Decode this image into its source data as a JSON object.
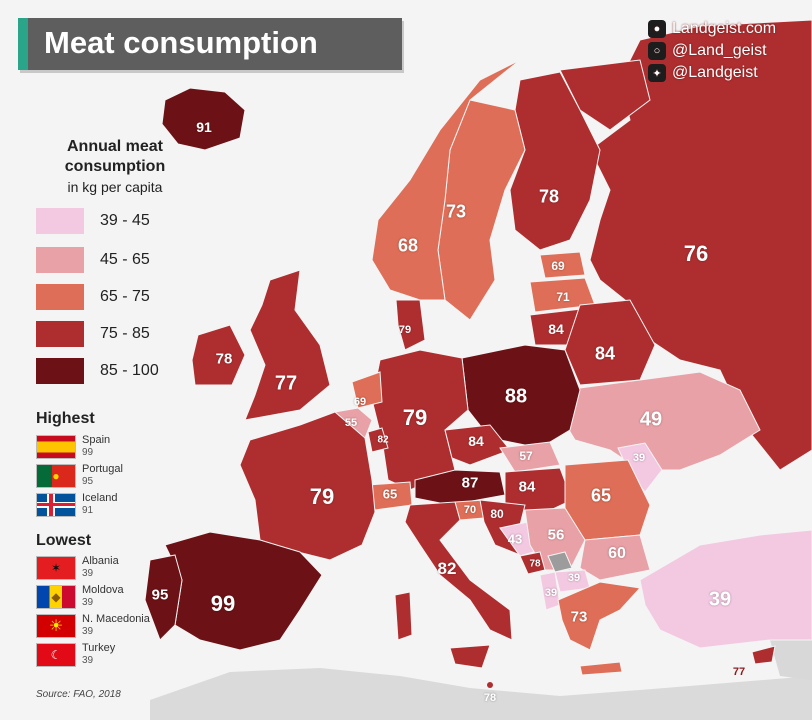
{
  "title": "Meat consumption",
  "brand": {
    "site": "Landgeist.com",
    "instagram": "@Land_geist",
    "twitter": "@Landgeist",
    "icons": [
      "globe-icon",
      "instagram-icon",
      "twitter-icon"
    ]
  },
  "legend": {
    "title_line1": "Annual meat",
    "title_line2": "consumption",
    "subtitle": "in kg per capita",
    "bins": [
      {
        "label": "39 - 45",
        "color": "#f3c9e2"
      },
      {
        "label": "45 - 65",
        "color": "#e8a1a6"
      },
      {
        "label": "65 - 75",
        "color": "#de6e57"
      },
      {
        "label": "75 - 85",
        "color": "#ae2e30"
      },
      {
        "label": "85 - 100",
        "color": "#6c1216"
      }
    ]
  },
  "highest": {
    "title": "Highest",
    "items": [
      {
        "country": "Spain",
        "value": "99",
        "flag": "spain-flag"
      },
      {
        "country": "Portugal",
        "value": "95",
        "flag": "portugal-flag"
      },
      {
        "country": "Iceland",
        "value": "91",
        "flag": "iceland-flag"
      }
    ]
  },
  "lowest": {
    "title": "Lowest",
    "items": [
      {
        "country": "Albania",
        "value": "39",
        "flag": "albania-flag"
      },
      {
        "country": "Moldova",
        "value": "39",
        "flag": "moldova-flag"
      },
      {
        "country": "N. Macedonia",
        "value": "39",
        "flag": "north-macedonia-flag"
      },
      {
        "country": "Turkey",
        "value": "39",
        "flag": "turkey-flag"
      }
    ]
  },
  "source": "Source: FAO, 2018",
  "map_values": [
    {
      "id": "iceland",
      "value": "91"
    },
    {
      "id": "norway",
      "value": "68"
    },
    {
      "id": "sweden",
      "value": "73"
    },
    {
      "id": "finland",
      "value": "78"
    },
    {
      "id": "russia",
      "value": "76"
    },
    {
      "id": "estonia",
      "value": "69"
    },
    {
      "id": "latvia",
      "value": "71"
    },
    {
      "id": "lithuania",
      "value": "84"
    },
    {
      "id": "belarus",
      "value": "84"
    },
    {
      "id": "denmark",
      "value": "79"
    },
    {
      "id": "ireland",
      "value": "78"
    },
    {
      "id": "uk",
      "value": "77"
    },
    {
      "id": "netherlands",
      "value": "69"
    },
    {
      "id": "belgium",
      "value": "55"
    },
    {
      "id": "luxembourg",
      "value": "82"
    },
    {
      "id": "germany",
      "value": "79"
    },
    {
      "id": "poland",
      "value": "88"
    },
    {
      "id": "ukraine",
      "value": "49"
    },
    {
      "id": "czechia",
      "value": "84"
    },
    {
      "id": "slovakia",
      "value": "57"
    },
    {
      "id": "moldova",
      "value": "39"
    },
    {
      "id": "austria",
      "value": "87"
    },
    {
      "id": "hungary",
      "value": "84"
    },
    {
      "id": "romania",
      "value": "65"
    },
    {
      "id": "switzerland",
      "value": "65"
    },
    {
      "id": "france",
      "value": "79"
    },
    {
      "id": "slovenia",
      "value": "70"
    },
    {
      "id": "croatia",
      "value": "80"
    },
    {
      "id": "bosnia",
      "value": "43"
    },
    {
      "id": "serbia",
      "value": "56"
    },
    {
      "id": "bulgaria",
      "value": "60"
    },
    {
      "id": "montenegro",
      "value": "78"
    },
    {
      "id": "north-macedonia",
      "value": "39"
    },
    {
      "id": "albania",
      "value": "39"
    },
    {
      "id": "greece",
      "value": "73"
    },
    {
      "id": "turkey",
      "value": "39"
    },
    {
      "id": "italy",
      "value": "82"
    },
    {
      "id": "spain",
      "value": "99"
    },
    {
      "id": "portugal",
      "value": "95"
    },
    {
      "id": "cyprus",
      "value": "77"
    },
    {
      "id": "malta",
      "value": "78"
    }
  ]
}
